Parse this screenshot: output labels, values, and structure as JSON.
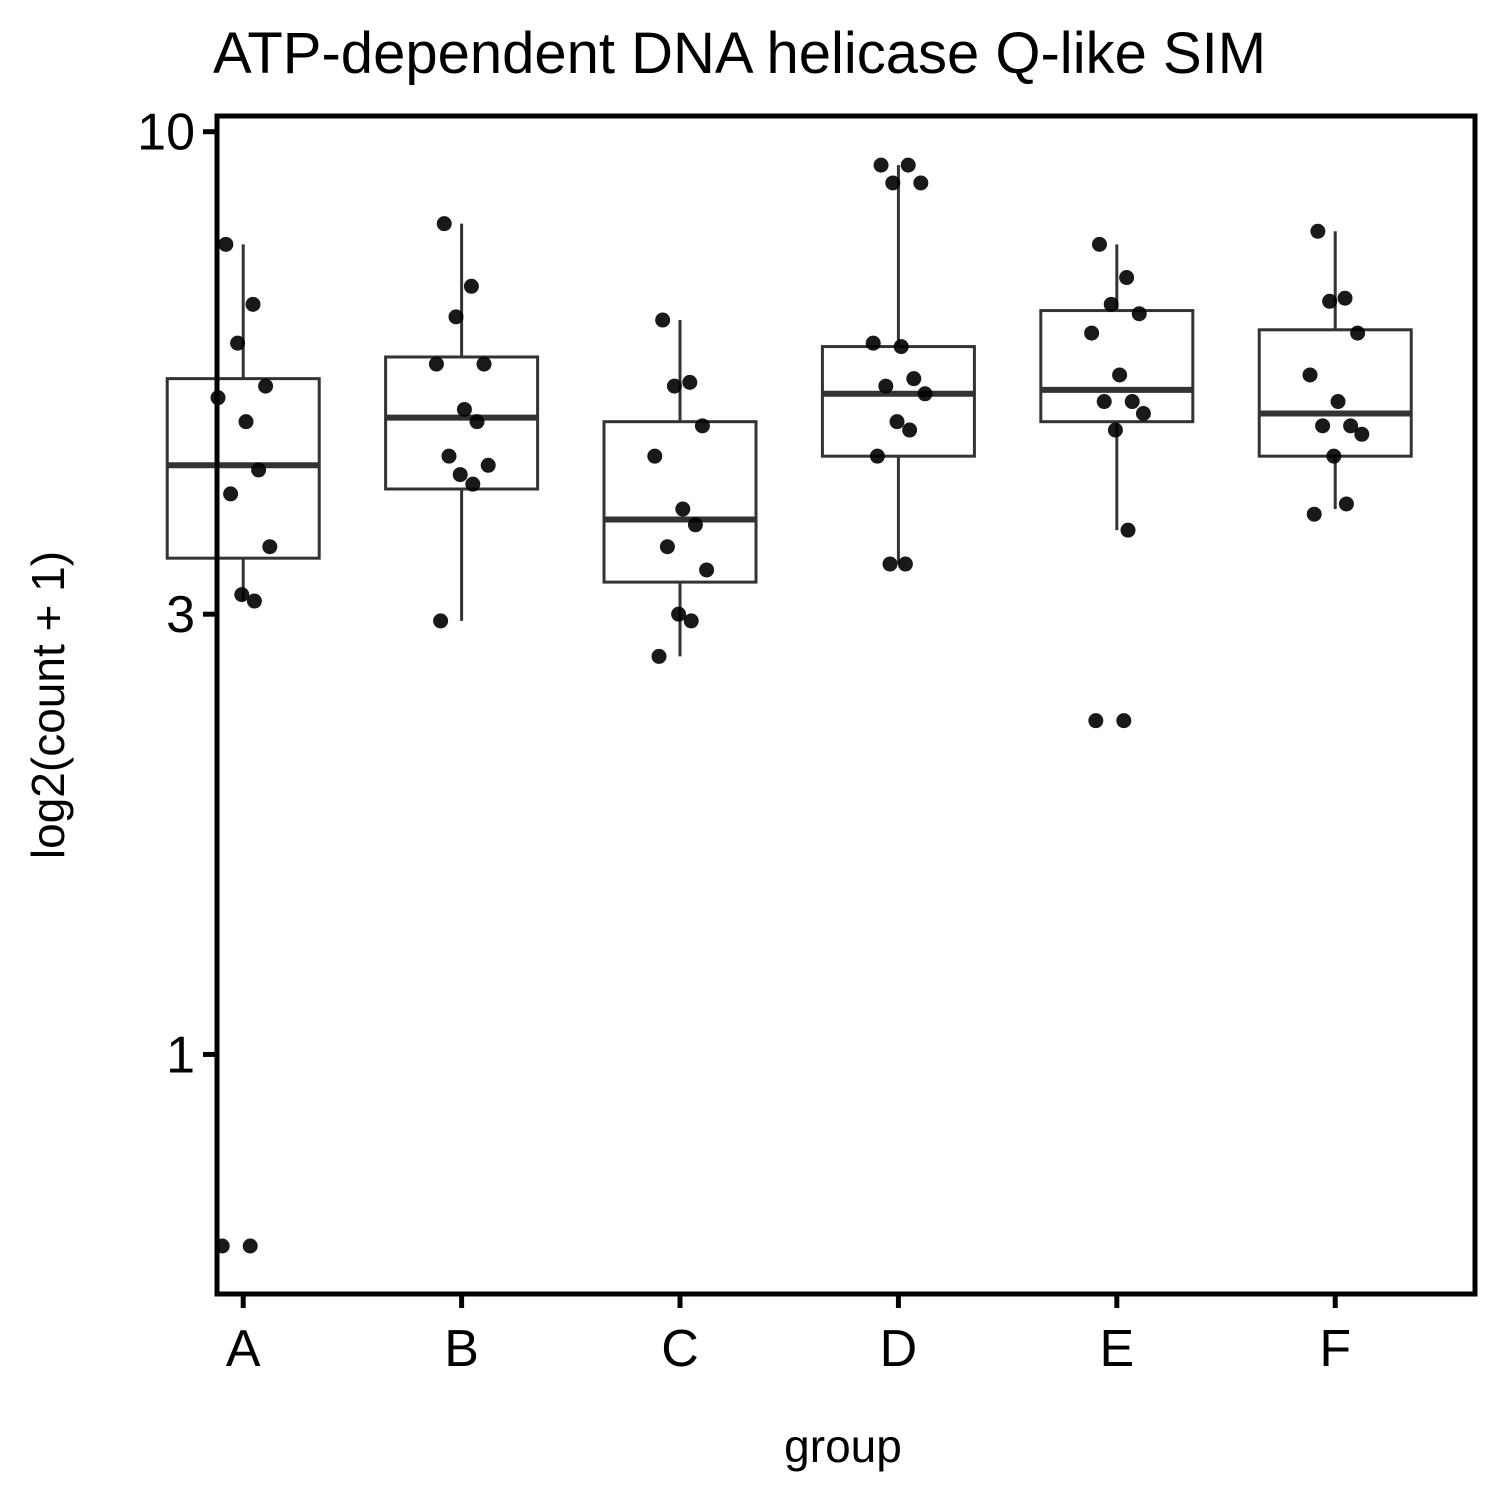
{
  "chart_data": {
    "type": "boxplot",
    "title": "ATP-dependent DNA helicase Q-like SIM",
    "xlabel": "group",
    "ylabel": "log2(count + 1)",
    "y_scale": "log10",
    "ylim": [
      0.55,
      10.4
    ],
    "y_ticks": [
      {
        "value": 1,
        "label": "1"
      },
      {
        "value": 3,
        "label": "3"
      },
      {
        "value": 10,
        "label": "10"
      }
    ],
    "grid": false,
    "legend": "none",
    "categories": [
      "A",
      "B",
      "C",
      "D",
      "E",
      "F"
    ],
    "boxes": [
      {
        "group": "A",
        "whisker_low": 3.1,
        "q1": 3.45,
        "median": 4.35,
        "q3": 5.4,
        "whisker_high": 7.55
      },
      {
        "group": "B",
        "whisker_low": 2.95,
        "q1": 4.1,
        "median": 4.9,
        "q3": 5.7,
        "whisker_high": 7.95
      },
      {
        "group": "C",
        "whisker_low": 2.7,
        "q1": 3.25,
        "median": 3.8,
        "q3": 4.85,
        "whisker_high": 6.25
      },
      {
        "group": "D",
        "whisker_low": 3.4,
        "q1": 4.45,
        "median": 5.2,
        "q3": 5.85,
        "whisker_high": 9.2
      },
      {
        "group": "E",
        "whisker_low": 3.7,
        "q1": 4.85,
        "median": 5.25,
        "q3": 6.4,
        "whisker_high": 7.55
      },
      {
        "group": "F",
        "whisker_low": 3.9,
        "q1": 4.45,
        "median": 4.95,
        "q3": 6.1,
        "whisker_high": 7.8
      }
    ],
    "points": [
      {
        "group": "A",
        "values": [
          7.55,
          6.5,
          5.9,
          5.3,
          5.15,
          4.85,
          4.3,
          4.05,
          3.55,
          3.15,
          3.1,
          0.62,
          0.62
        ]
      },
      {
        "group": "B",
        "values": [
          7.95,
          6.8,
          6.3,
          5.6,
          5.6,
          5.0,
          4.85,
          4.45,
          4.35,
          4.25,
          4.15,
          2.95
        ]
      },
      {
        "group": "C",
        "values": [
          6.25,
          5.35,
          5.3,
          4.8,
          4.45,
          3.9,
          3.75,
          3.55,
          3.35,
          3.0,
          2.95,
          2.7
        ]
      },
      {
        "group": "D",
        "values": [
          9.2,
          9.2,
          8.8,
          8.8,
          5.9,
          5.85,
          5.4,
          5.3,
          5.2,
          4.85,
          4.75,
          4.45,
          3.4,
          3.4
        ]
      },
      {
        "group": "E",
        "values": [
          7.55,
          6.95,
          6.5,
          6.35,
          6.05,
          5.45,
          5.1,
          5.1,
          4.95,
          4.75,
          3.7,
          2.3,
          2.3
        ]
      },
      {
        "group": "F",
        "values": [
          7.8,
          6.6,
          6.55,
          6.05,
          5.45,
          5.1,
          4.8,
          4.8,
          4.7,
          4.45,
          3.95,
          3.85
        ]
      }
    ]
  }
}
